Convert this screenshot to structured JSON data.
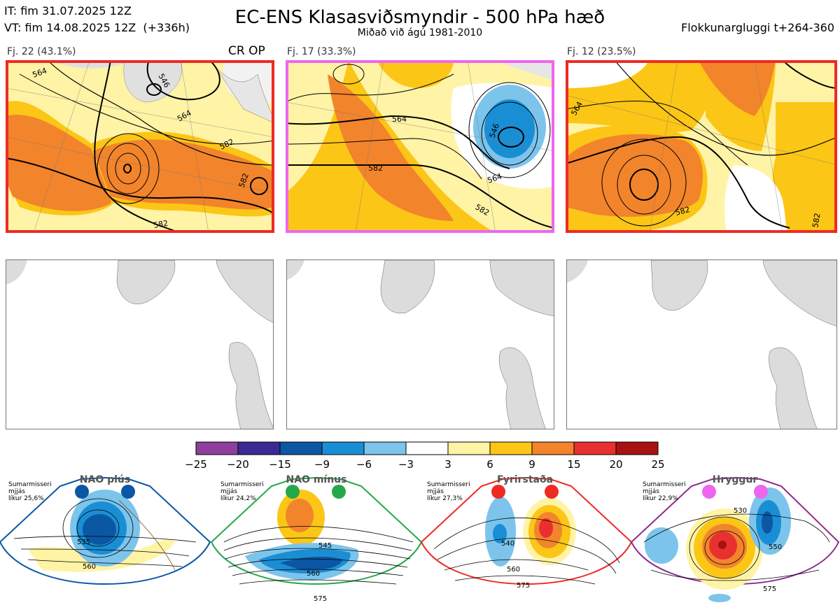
{
  "header": {
    "init_time": "IT: fim 31.07.2025 12Z",
    "valid_time": "VT: fim 14.08.2025 12Z  (+336h)",
    "title": "EC-ENS Klasasviðsmyndir - 500 hPa hæð",
    "subtitle": "Miðað við ágú 1981-2010",
    "window_label": "Flokkunargluggi t+264-360"
  },
  "clusters": [
    {
      "label": "Fj. 22 (43.1%)",
      "members": 22,
      "percent": 43.1,
      "border_color": "#ee2a24",
      "tags": "CR OP",
      "contour_labels": [
        "564",
        "546",
        "564",
        "582",
        "582",
        "582"
      ]
    },
    {
      "label": "Fj. 17 (33.3%)",
      "members": 17,
      "percent": 33.3,
      "border_color": "#ee66ee",
      "tags": "",
      "contour_labels": [
        "564",
        "546",
        "582",
        "564",
        "582"
      ]
    },
    {
      "label": "Fj. 12 (23.5%)",
      "members": 12,
      "percent": 23.5,
      "border_color": "#ee2a24",
      "tags": "",
      "contour_labels": [
        "564",
        "582",
        "582"
      ]
    }
  ],
  "colorbar": {
    "ticks": [
      "−25",
      "−20",
      "−15",
      "−9",
      "−6",
      "−3",
      "3",
      "6",
      "9",
      "15",
      "20",
      "25"
    ],
    "colors": [
      "#8e3f9c",
      "#3a2a94",
      "#0c57a4",
      "#1a8ed4",
      "#7cc4ec",
      "#ffffff",
      "#fff3a6",
      "#fcc617",
      "#f2842c",
      "#e93030",
      "#a91111"
    ]
  },
  "regimes": [
    {
      "name": "NAO plús",
      "season": "Sumarmisseri",
      "scope": "mjjás",
      "likelihood": "líkur 25,6%",
      "probability": 25.6,
      "color": "#0c57a4",
      "dots": 2,
      "contour_labels": [
        "535",
        "560"
      ]
    },
    {
      "name": "NAO mínus",
      "season": "Sumarmisseri",
      "scope": "mjjás",
      "likelihood": "líkur 24,2%",
      "probability": 24.2,
      "color": "#25a84a",
      "dots": 2,
      "contour_labels": [
        "545",
        "560",
        "575"
      ]
    },
    {
      "name": "Fyrirstaða",
      "season": "Sumarmisseri",
      "scope": "mjjás",
      "likelihood": "líkur 27,3%",
      "probability": 27.3,
      "color": "#ee2a24",
      "dots": 2,
      "contour_labels": [
        "540",
        "560",
        "575"
      ]
    },
    {
      "name": "Hryggur",
      "season": "Sumarmisseri",
      "scope": "mjjás",
      "likelihood": "líkur 22,9%",
      "probability": 22.9,
      "color": "#ee66ee",
      "frame_color": "#8e2c8e",
      "dots": 2,
      "contour_labels": [
        "530",
        "550",
        "575"
      ]
    }
  ],
  "chart_data": {
    "type": "heatmap",
    "title": "EC-ENS Klasasviðsmyndir - 500 hPa hæð",
    "subtitle": "Miðað við ágú 1981-2010",
    "anomaly_levels": [
      -25,
      -20,
      -15,
      -9,
      -6,
      -3,
      3,
      6,
      9,
      15,
      20,
      25
    ],
    "series": [
      {
        "name": "Fj. 22 (43.1%)",
        "members": 22,
        "percent": 43.1
      },
      {
        "name": "Fj. 17 (33.3%)",
        "members": 17,
        "percent": 33.3
      },
      {
        "name": "Fj. 12 (23.5%)",
        "members": 12,
        "percent": 23.5
      }
    ],
    "regimes": [
      {
        "name": "NAO plús",
        "probability": 25.6
      },
      {
        "name": "NAO mínus",
        "probability": 24.2
      },
      {
        "name": "Fyrirstaða",
        "probability": 27.3
      },
      {
        "name": "Hryggur",
        "probability": 22.9
      }
    ]
  }
}
